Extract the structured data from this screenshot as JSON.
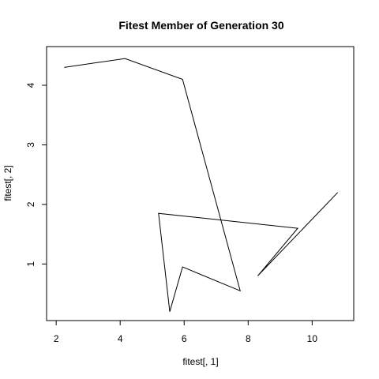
{
  "chart_data": {
    "type": "line",
    "title": "Fitest Member of Generation 30",
    "xlabel": "fitest[, 1]",
    "ylabel": "fitest[, 2]",
    "xlim": [
      1.7,
      11.3
    ],
    "ylim": [
      0.05,
      4.65
    ],
    "x_ticks": [
      2,
      4,
      6,
      8,
      10
    ],
    "y_ticks": [
      1,
      2,
      3,
      4
    ],
    "grid": false,
    "legend": "none",
    "series": [
      {
        "x": [
          2.25,
          4.15,
          5.95,
          7.75,
          5.95,
          5.55,
          5.2,
          9.55,
          8.3,
          10.8
        ],
        "y": [
          4.3,
          4.45,
          4.1,
          0.55,
          0.95,
          0.2,
          1.85,
          1.6,
          0.8,
          2.2
        ]
      }
    ]
  }
}
